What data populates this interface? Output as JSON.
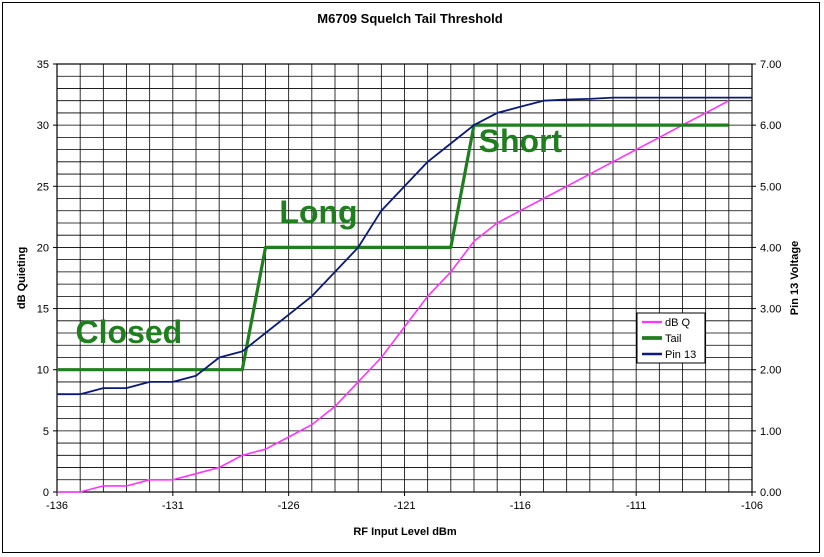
{
  "chart_data": {
    "type": "line",
    "title": "M6709 Squelch Tail Threshold",
    "xlabel": "RF Input Level dBm",
    "ylabel": "dB Quieting",
    "y2label": "Pin 13 Voltage",
    "xlim": [
      -136,
      -106
    ],
    "ylim": [
      0,
      35
    ],
    "y2lim": [
      0,
      7
    ],
    "x_ticks": [
      "-136",
      "-131",
      "-126",
      "-121",
      "-116",
      "-111",
      "-106"
    ],
    "x_tick_values": [
      -136,
      -131,
      -126,
      -121,
      -116,
      -111,
      -106
    ],
    "y_ticks": [
      "0",
      "5",
      "10",
      "15",
      "20",
      "25",
      "30",
      "35"
    ],
    "y_tick_values": [
      0,
      5,
      10,
      15,
      20,
      25,
      30,
      35
    ],
    "y2_ticks": [
      "0.00",
      "1.00",
      "2.00",
      "3.00",
      "4.00",
      "5.00",
      "6.00",
      "7.00"
    ],
    "y2_tick_values": [
      0,
      1,
      2,
      3,
      4,
      5,
      6,
      7
    ],
    "grid": true,
    "legend_position": "right",
    "series": [
      {
        "name": "dB Q",
        "axis": "left",
        "color": "#ff33ff",
        "x": [
          -136,
          -135,
          -134,
          -133,
          -132,
          -131,
          -130,
          -129,
          -128,
          -127,
          -126,
          -125,
          -124,
          -123,
          -122,
          -121,
          -120,
          -119,
          -118,
          -117,
          -116,
          -115,
          -114,
          -113,
          -112,
          -111,
          -110,
          -109,
          -108,
          -107
        ],
        "y": [
          0,
          0,
          0.5,
          0.5,
          1,
          1,
          1.5,
          2,
          3,
          3.5,
          4.5,
          5.5,
          7,
          9,
          11,
          13.5,
          16,
          18,
          20.5,
          22,
          23,
          24,
          25,
          26,
          27,
          28,
          29,
          30,
          31,
          32
        ]
      },
      {
        "name": "Tail",
        "axis": "left",
        "color": "#1f7f1f",
        "x": [
          -136,
          -128,
          -127,
          -119,
          -118,
          -107
        ],
        "y": [
          10,
          10,
          20,
          20,
          30,
          30
        ]
      },
      {
        "name": "Pin 13",
        "axis": "right",
        "color": "#0a1a7a",
        "x": [
          -136,
          -135,
          -134,
          -133,
          -132,
          -131,
          -130,
          -129,
          -128,
          -127,
          -126,
          -125,
          -124,
          -123,
          -122,
          -121,
          -120,
          -119,
          -118,
          -117,
          -116,
          -115,
          -114,
          -113,
          -112,
          -111,
          -110,
          -109,
          -108,
          -107,
          -106
        ],
        "y": [
          1.6,
          1.6,
          1.7,
          1.7,
          1.8,
          1.8,
          1.9,
          2.2,
          2.3,
          2.6,
          2.9,
          3.2,
          3.6,
          4.0,
          4.6,
          5.0,
          5.4,
          5.7,
          6.0,
          6.2,
          6.3,
          6.4,
          6.42,
          6.43,
          6.45,
          6.45,
          6.45,
          6.45,
          6.45,
          6.45,
          6.45
        ]
      }
    ],
    "annotations": [
      {
        "text": "Closed",
        "x": -135.2,
        "y": 12.2
      },
      {
        "text": "Long",
        "x": -126.4,
        "y": 22
      },
      {
        "text": "Short",
        "x": -117.8,
        "y": 27.8
      }
    ]
  }
}
